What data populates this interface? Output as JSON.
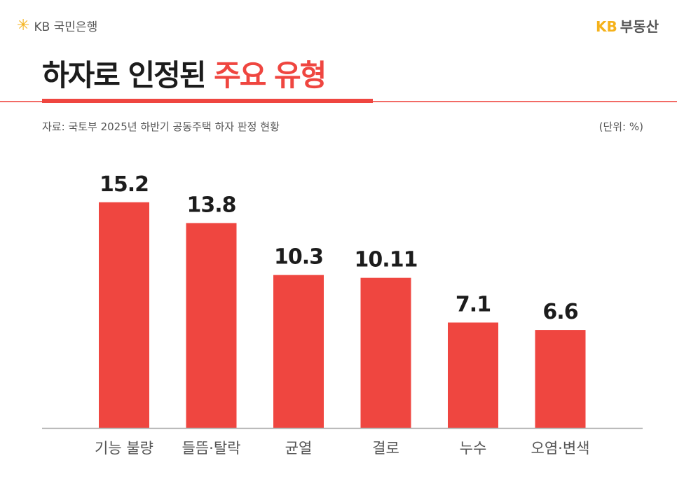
{
  "header": {
    "bank_logo": "KB 국민은행",
    "brand_kb": "KB",
    "brand_name": "부동산"
  },
  "title": {
    "main": "하자로 인정된",
    "highlight": "주요 유형"
  },
  "source": "자료: 국토부 2025년 하반기 공동주택 하자 판정 현황",
  "unit": "(단위: %)",
  "colors": {
    "accent": "#ef4640",
    "brand": "#f5b21b"
  },
  "chart_data": {
    "type": "bar",
    "categories": [
      "기능 불량",
      "들뜸·탈락",
      "균열",
      "결로",
      "누수",
      "오염·변색"
    ],
    "values": [
      15.2,
      13.8,
      10.3,
      10.11,
      7.1,
      6.6
    ],
    "labels": [
      "15.2",
      "13.8",
      "10.3",
      "10.11",
      "7.1",
      "6.6"
    ],
    "ylim": [
      0,
      16
    ],
    "grid": false,
    "bar_color": "#ef4640"
  }
}
